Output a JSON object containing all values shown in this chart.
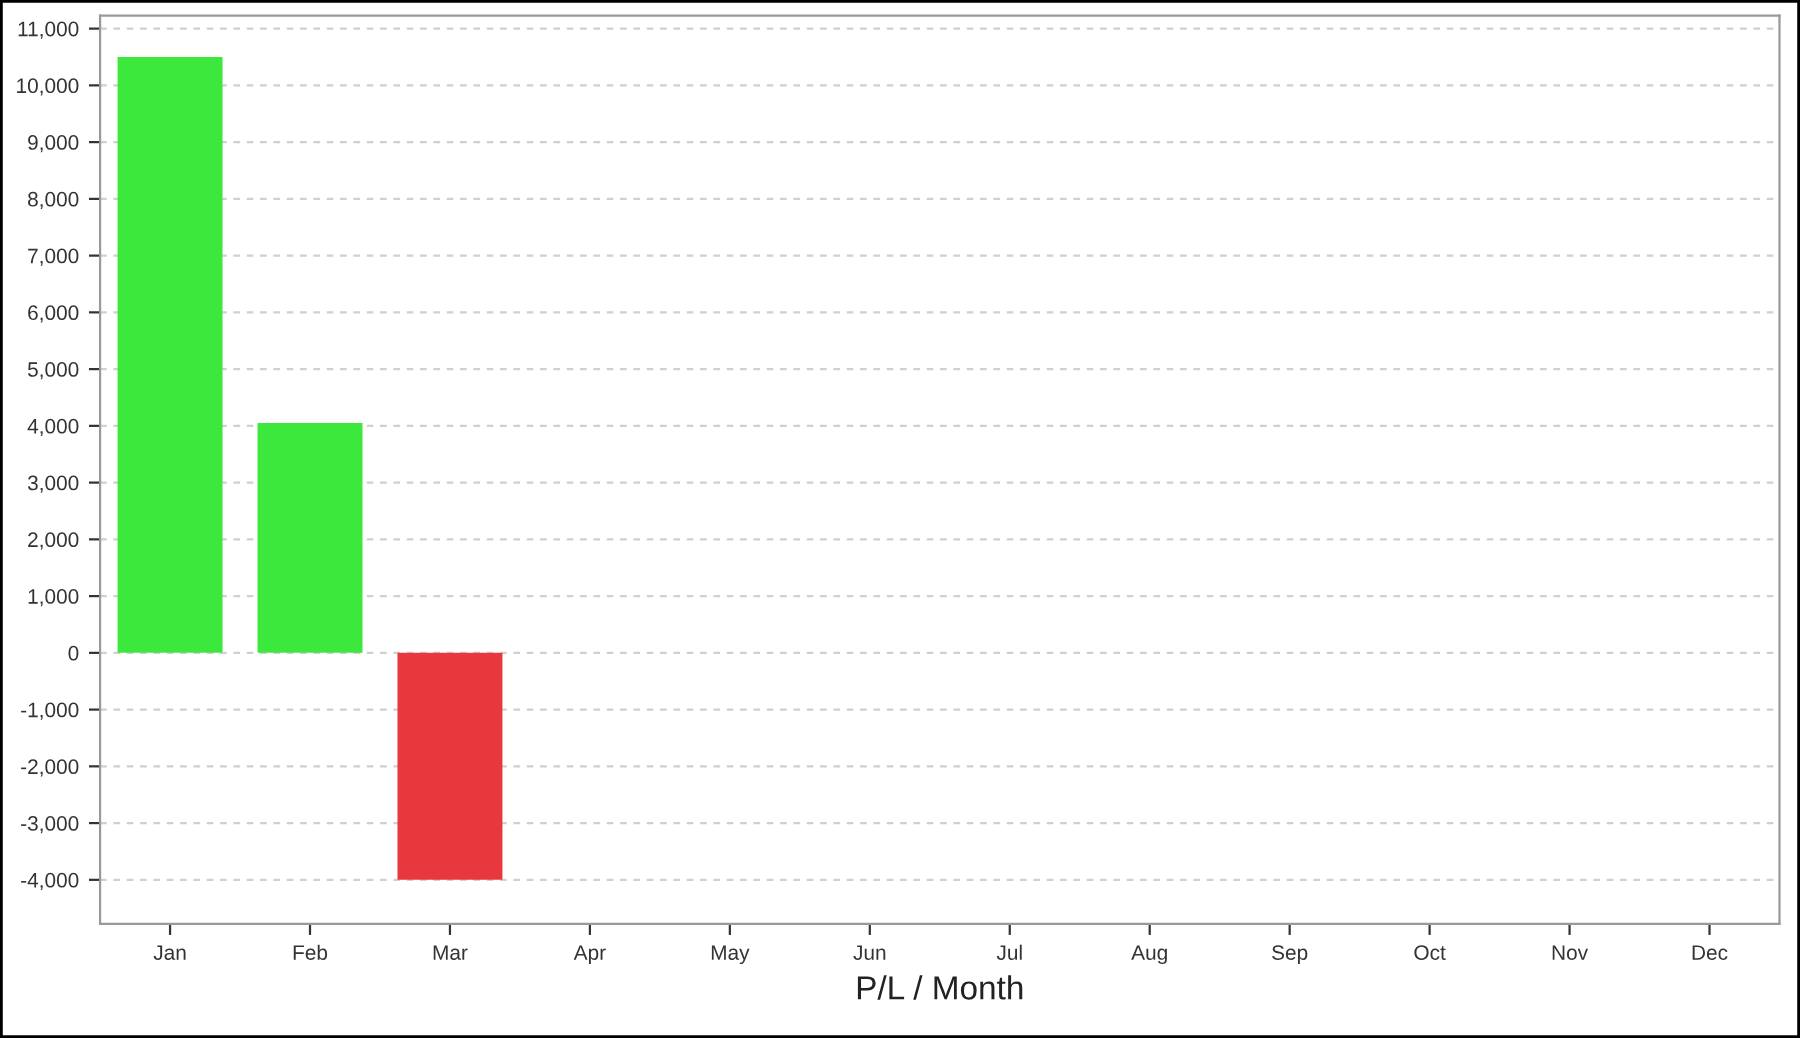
{
  "chart_data": {
    "type": "bar",
    "xlabel": "P/L / Month",
    "categories": [
      "Jan",
      "Feb",
      "Mar",
      "Apr",
      "May",
      "Jun",
      "Jul",
      "Aug",
      "Sep",
      "Oct",
      "Nov",
      "Dec"
    ],
    "values": [
      10500,
      4050,
      -4000,
      null,
      null,
      null,
      null,
      null,
      null,
      null,
      null,
      null
    ],
    "colors": [
      "#3de83d",
      "#3de83d",
      "#e8383d",
      "#3de83d",
      "#3de83d",
      "#3de83d",
      "#3de83d",
      "#3de83d",
      "#3de83d",
      "#3de83d",
      "#3de83d",
      "#3de83d"
    ],
    "ylim": [
      -4775,
      11230
    ],
    "yticks": [
      {
        "value": -4000,
        "label": "-4,000"
      },
      {
        "value": -3000,
        "label": "-3,000"
      },
      {
        "value": -2000,
        "label": "-2,000"
      },
      {
        "value": -1000,
        "label": "-1,000"
      },
      0,
      {
        "value": 1000,
        "label": "1,000"
      },
      {
        "value": 2000,
        "label": "2,000"
      },
      {
        "value": 3000,
        "label": "3,000"
      },
      {
        "value": 4000,
        "label": "4,000"
      },
      {
        "value": 5000,
        "label": "5,000"
      },
      {
        "value": 6000,
        "label": "6,000"
      },
      {
        "value": 7000,
        "label": "7,000"
      },
      {
        "value": 8000,
        "label": "8,000"
      },
      {
        "value": 9000,
        "label": "9,000"
      },
      {
        "value": 10000,
        "label": "10,000"
      },
      {
        "value": 11000,
        "label": "11,000"
      }
    ],
    "grid": "y"
  }
}
